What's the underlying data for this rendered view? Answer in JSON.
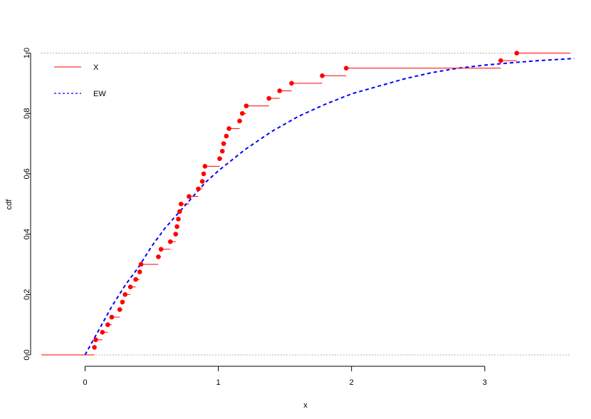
{
  "chart_data": {
    "type": "line",
    "title": "",
    "xlabel": "x",
    "ylabel": "cdf",
    "xlim": [
      -0.33,
      3.67
    ],
    "ylim": [
      0,
      1
    ],
    "x_ticks": [
      "0",
      "1",
      "2",
      "3"
    ],
    "y_ticks": [
      "0.0",
      "0.2",
      "0.4",
      "0.6",
      "0.8",
      "1.0"
    ],
    "x_tick_values": [
      0,
      1,
      2,
      3
    ],
    "y_tick_values": [
      0,
      0.2,
      0.4,
      0.6,
      0.8,
      1.0
    ],
    "grid": false,
    "reference_lines_y": [
      0,
      1
    ],
    "legend": {
      "placement": "top-left",
      "entries": [
        {
          "label": "X",
          "color": "#ff0000",
          "style": "solid"
        },
        {
          "label": "EW",
          "color": "#0000ff",
          "style": "dashed"
        }
      ]
    },
    "series": [
      {
        "name": "X",
        "kind": "ecdf-step",
        "color": "#ff0000",
        "x": [
          0.07,
          0.08,
          0.13,
          0.17,
          0.2,
          0.26,
          0.28,
          0.3,
          0.34,
          0.38,
          0.41,
          0.42,
          0.55,
          0.57,
          0.64,
          0.68,
          0.69,
          0.7,
          0.71,
          0.72,
          0.78,
          0.85,
          0.88,
          0.89,
          0.9,
          1.01,
          1.03,
          1.04,
          1.06,
          1.08,
          1.16,
          1.18,
          1.21,
          1.38,
          1.46,
          1.55,
          1.78,
          1.96,
          3.12,
          3.24
        ],
        "y": [
          0.025,
          0.05,
          0.075,
          0.1,
          0.125,
          0.15,
          0.175,
          0.2,
          0.225,
          0.25,
          0.275,
          0.3,
          0.325,
          0.35,
          0.375,
          0.4,
          0.425,
          0.45,
          0.475,
          0.5,
          0.525,
          0.55,
          0.575,
          0.6,
          0.625,
          0.65,
          0.675,
          0.7,
          0.725,
          0.75,
          0.775,
          0.8,
          0.825,
          0.85,
          0.875,
          0.9,
          0.925,
          0.95,
          0.975,
          1.0
        ]
      },
      {
        "name": "EW",
        "kind": "function-curve",
        "color": "#0000ff",
        "x": [
          0.0,
          0.1,
          0.2,
          0.3,
          0.4,
          0.5,
          0.6,
          0.7,
          0.8,
          0.9,
          1.0,
          1.2,
          1.4,
          1.6,
          1.8,
          2.0,
          2.2,
          2.4,
          2.6,
          2.8,
          3.0,
          3.2,
          3.4,
          3.67
        ],
        "y": [
          0.0,
          0.08,
          0.16,
          0.23,
          0.29,
          0.36,
          0.42,
          0.47,
          0.52,
          0.57,
          0.61,
          0.68,
          0.74,
          0.79,
          0.83,
          0.865,
          0.89,
          0.915,
          0.935,
          0.95,
          0.96,
          0.968,
          0.975,
          0.982
        ]
      }
    ]
  }
}
